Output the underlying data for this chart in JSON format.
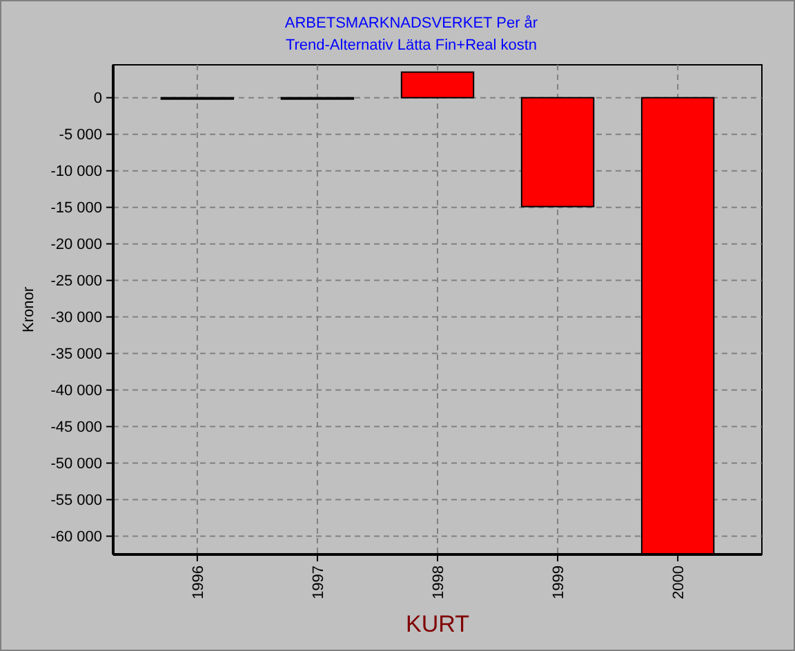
{
  "chart_data": {
    "type": "bar",
    "title": "ARBETSMARKNADSVERKET Per år",
    "subtitle": "Trend-Alternativ Lätta Fin+Real kostn",
    "xlabel": "KURT",
    "ylabel": "Kronor",
    "categories": [
      "1996",
      "1997",
      "1998",
      "1999",
      "2000"
    ],
    "values": [
      0,
      0,
      3500,
      -14900,
      -62500
    ],
    "color": "#ff0000",
    "ylim": [
      -62500,
      4500
    ],
    "yticks": [
      {
        "value": 0,
        "label": "0"
      },
      {
        "value": -5000,
        "label": "-5 000"
      },
      {
        "value": -10000,
        "label": "-10 000"
      },
      {
        "value": -15000,
        "label": "-15 000"
      },
      {
        "value": -20000,
        "label": "-20 000"
      },
      {
        "value": -25000,
        "label": "-25 000"
      },
      {
        "value": -30000,
        "label": "-30 000"
      },
      {
        "value": -35000,
        "label": "-35 000"
      },
      {
        "value": -40000,
        "label": "-40 000"
      },
      {
        "value": -45000,
        "label": "-45 000"
      },
      {
        "value": -50000,
        "label": "-50 000"
      },
      {
        "value": -55000,
        "label": "-55 000"
      },
      {
        "value": -60000,
        "label": "-60 000"
      }
    ],
    "grid": true
  }
}
